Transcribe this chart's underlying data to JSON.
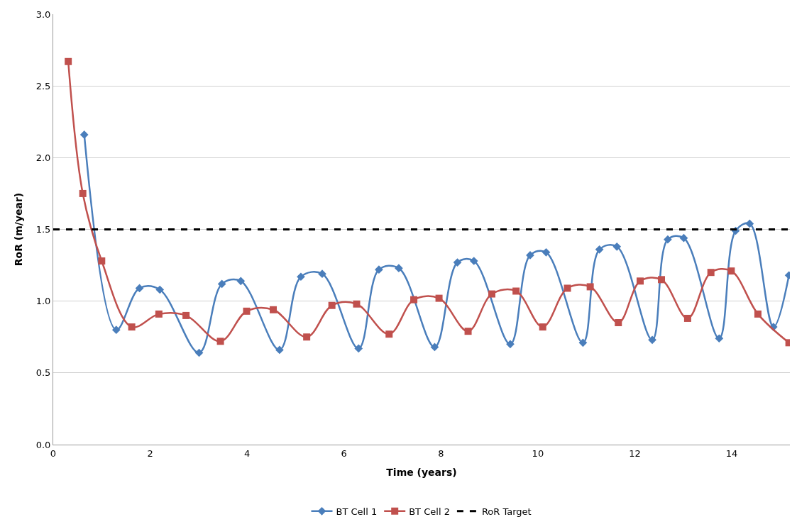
{
  "chart_data": {
    "type": "line",
    "xlabel": "Time (years)",
    "ylabel": "RoR (m/year)",
    "xlim": [
      0,
      15.2
    ],
    "xticks": [
      0,
      2,
      4,
      6,
      8,
      10,
      12,
      14
    ],
    "ylim": [
      0,
      3
    ],
    "yticks": [
      {
        "value": 0,
        "label": "0.0"
      },
      {
        "value": 0.5,
        "label": "0.5"
      },
      {
        "value": 1,
        "label": "1.0"
      },
      {
        "value": 1.5,
        "label": "1.5"
      },
      {
        "value": 2,
        "label": "2.0"
      },
      {
        "value": 2.5,
        "label": "2.5"
      },
      {
        "value": 3,
        "label": "3.0"
      }
    ],
    "grid": "y",
    "legend": "bottom",
    "series": [
      {
        "name": "BT Cell 1",
        "color": "#4a7ebb",
        "marker": "diamond",
        "x": [
          0.64,
          1.3,
          1.78,
          2.2,
          3.01,
          3.48,
          3.87,
          4.67,
          5.11,
          5.55,
          6.3,
          6.72,
          7.13,
          7.87,
          8.34,
          8.68,
          9.43,
          9.84,
          10.17,
          10.93,
          11.27,
          11.63,
          12.36,
          12.68,
          13.01,
          13.74,
          14.08,
          14.37,
          14.86,
          15.18
        ],
        "values": [
          2.16,
          0.8,
          1.09,
          1.08,
          0.64,
          1.12,
          1.14,
          0.66,
          1.17,
          1.19,
          0.67,
          1.22,
          1.23,
          0.68,
          1.27,
          1.28,
          0.7,
          1.32,
          1.34,
          0.71,
          1.36,
          1.38,
          0.73,
          1.43,
          1.44,
          0.74,
          1.49,
          1.54,
          0.82,
          1.18
        ]
      },
      {
        "name": "BT Cell 2",
        "color": "#c0504d",
        "marker": "square",
        "x": [
          0.31,
          0.61,
          1.0,
          1.62,
          2.18,
          2.74,
          3.45,
          3.99,
          4.54,
          5.23,
          5.75,
          6.26,
          6.93,
          7.44,
          7.96,
          8.56,
          9.05,
          9.55,
          10.1,
          10.61,
          11.08,
          11.66,
          12.11,
          12.55,
          13.09,
          13.57,
          13.99,
          14.54,
          15.18
        ],
        "values": [
          2.67,
          1.75,
          1.28,
          0.82,
          0.91,
          0.9,
          0.72,
          0.93,
          0.94,
          0.75,
          0.97,
          0.98,
          0.77,
          1.01,
          1.02,
          0.79,
          1.05,
          1.07,
          0.82,
          1.09,
          1.1,
          0.85,
          1.14,
          1.15,
          0.88,
          1.2,
          1.21,
          0.91,
          0.71
        ]
      }
    ],
    "ref_lines": [
      {
        "axis": "y",
        "value": 1.5,
        "label": "RoR Target",
        "color": "#000000",
        "line_style": "dashed"
      }
    ]
  }
}
